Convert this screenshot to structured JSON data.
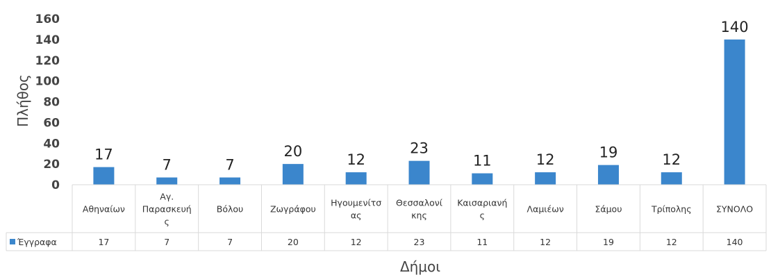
{
  "chart_data": {
    "type": "bar",
    "categories": [
      "Αθηναίων",
      "Αγ. Παρασκευής",
      "Βόλου",
      "Ζωγράφου",
      "Ηγουμενίτσας",
      "Θεσσαλονίκης",
      "Καισαριανής",
      "Λαμιέων",
      "Σάμου",
      "Τρίπολης",
      "ΣΥΝΟΛΟ"
    ],
    "category_lines": [
      [
        "Αθηναίων"
      ],
      [
        "Αγ.",
        "Παρασκευή",
        "ς"
      ],
      [
        "Βόλου"
      ],
      [
        "Ζωγράφου"
      ],
      [
        "Ηγουμενίτσ",
        "ας"
      ],
      [
        "Θεσσαλονί",
        "κης"
      ],
      [
        "Καισαριανή",
        "ς"
      ],
      [
        "Λαμιέων"
      ],
      [
        "Σάμου"
      ],
      [
        "Τρίπολης"
      ],
      [
        "ΣΥΝΟΛΟ"
      ]
    ],
    "series": [
      {
        "name": "Έγγραφα",
        "values": [
          17,
          7,
          7,
          20,
          12,
          23,
          11,
          12,
          19,
          12,
          140
        ],
        "color": "#3b86cc"
      }
    ],
    "xlabel": "Δήμοι",
    "ylabel": "Πλήθος",
    "ylim": [
      0,
      160
    ],
    "yticks": [
      0,
      20,
      40,
      60,
      80,
      100,
      120,
      140,
      160
    ],
    "grid": false,
    "legend": "data-table-left",
    "data_table": true,
    "border_color": "#d9d9d9"
  }
}
